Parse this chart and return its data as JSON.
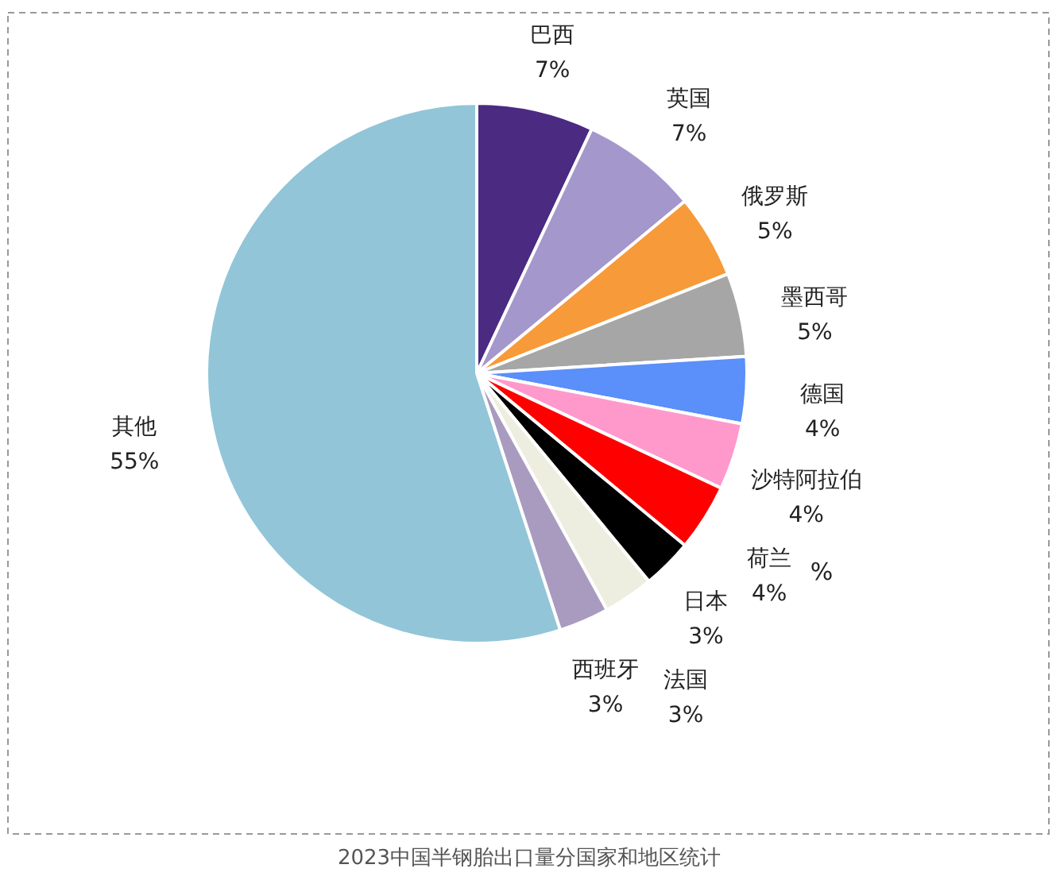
{
  "chart_data": {
    "type": "pie",
    "categories": [
      "巴西",
      "英国",
      "俄罗斯",
      "墨西哥",
      "德国",
      "沙特阿拉伯",
      "荷兰",
      "日本",
      "法国",
      "西班牙",
      "其他"
    ],
    "values": [
      7,
      7,
      5,
      5,
      4,
      4,
      4,
      3,
      3,
      3,
      55
    ],
    "value_labels": [
      "7%",
      "7%",
      "5%",
      "5%",
      "4%",
      "4%",
      "4%",
      "3%",
      "3%",
      "3%",
      "55%"
    ],
    "colors": [
      "#4b2a82",
      "#a497cc",
      "#f79a3a",
      "#a6a6a6",
      "#5b8ff9",
      "#ff99cc",
      "#ff0000",
      "#000000",
      "#eeeee0",
      "#a99bc0",
      "#92c5d8"
    ],
    "legend": false,
    "annotations": [
      "%",
      "2023中国半钢胎出口量分国家和地区统计"
    ]
  }
}
